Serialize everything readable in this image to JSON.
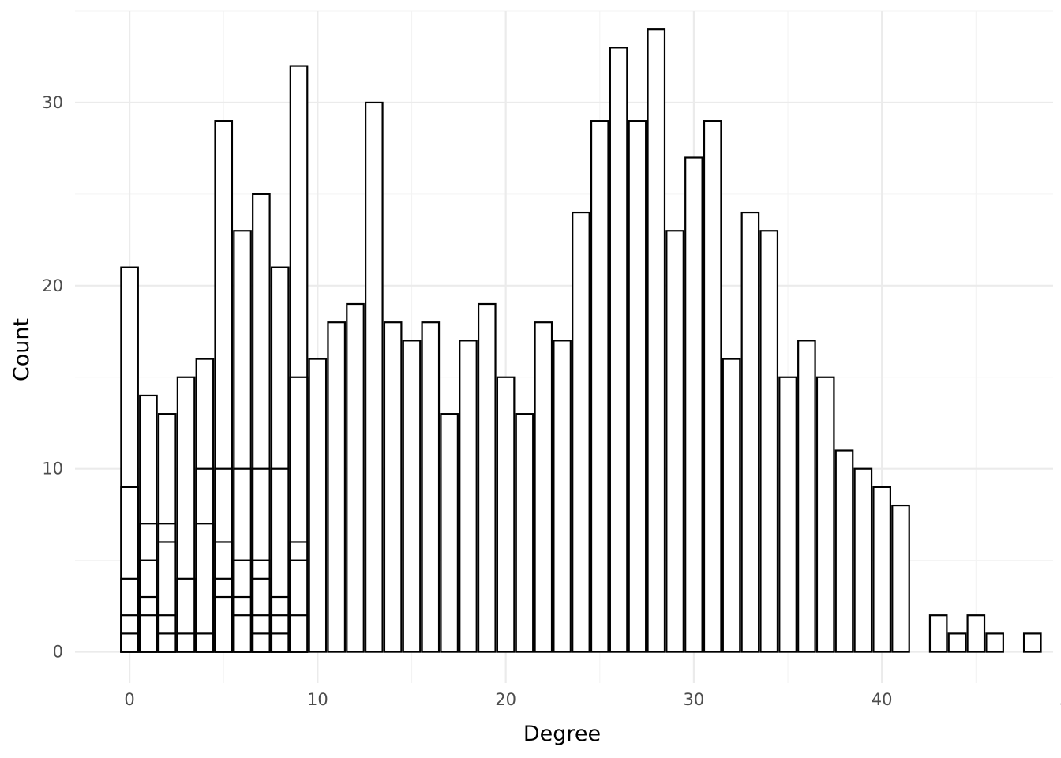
{
  "chart_data": {
    "type": "bar",
    "xlabel": "Degree",
    "ylabel": "Count",
    "xlim": [
      -2.9,
      49.1
    ],
    "ylim": [
      -1.7,
      35
    ],
    "x_ticks": [
      0,
      10,
      20,
      30,
      40,
      50
    ],
    "y_ticks": [
      0,
      10,
      20,
      30
    ],
    "grid": true,
    "legend": "none",
    "bin_width": 0.9,
    "bars": [
      {
        "x": 0,
        "values": [
          1,
          2,
          4,
          9,
          21
        ]
      },
      {
        "x": 1,
        "values": [
          2,
          3,
          5,
          7,
          14
        ]
      },
      {
        "x": 2,
        "values": [
          1,
          2,
          6,
          7,
          13
        ]
      },
      {
        "x": 3,
        "values": [
          1,
          4,
          15
        ]
      },
      {
        "x": 4,
        "values": [
          1,
          7,
          10,
          16
        ]
      },
      {
        "x": 5,
        "values": [
          3,
          4,
          6,
          10,
          29
        ]
      },
      {
        "x": 6,
        "values": [
          2,
          3,
          5,
          10,
          23
        ]
      },
      {
        "x": 7,
        "values": [
          1,
          2,
          4,
          5,
          10,
          25
        ]
      },
      {
        "x": 8,
        "values": [
          1,
          2,
          3,
          10,
          21
        ]
      },
      {
        "x": 9,
        "values": [
          2,
          5,
          6,
          15,
          32
        ]
      },
      {
        "x": 10,
        "values": [
          16
        ]
      },
      {
        "x": 11,
        "values": [
          18
        ]
      },
      {
        "x": 12,
        "values": [
          19
        ]
      },
      {
        "x": 13,
        "values": [
          30
        ]
      },
      {
        "x": 14,
        "values": [
          18
        ]
      },
      {
        "x": 15,
        "values": [
          17
        ]
      },
      {
        "x": 16,
        "values": [
          18
        ]
      },
      {
        "x": 17,
        "values": [
          13
        ]
      },
      {
        "x": 18,
        "values": [
          17
        ]
      },
      {
        "x": 19,
        "values": [
          19
        ]
      },
      {
        "x": 20,
        "values": [
          15
        ]
      },
      {
        "x": 21,
        "values": [
          13
        ]
      },
      {
        "x": 22,
        "values": [
          18
        ]
      },
      {
        "x": 23,
        "values": [
          17
        ]
      },
      {
        "x": 24,
        "values": [
          24
        ]
      },
      {
        "x": 25,
        "values": [
          29
        ]
      },
      {
        "x": 26,
        "values": [
          33
        ]
      },
      {
        "x": 27,
        "values": [
          29
        ]
      },
      {
        "x": 28,
        "values": [
          34
        ]
      },
      {
        "x": 29,
        "values": [
          23
        ]
      },
      {
        "x": 30,
        "values": [
          27
        ]
      },
      {
        "x": 31,
        "values": [
          29
        ]
      },
      {
        "x": 32,
        "values": [
          16
        ]
      },
      {
        "x": 33,
        "values": [
          24
        ]
      },
      {
        "x": 34,
        "values": [
          23
        ]
      },
      {
        "x": 35,
        "values": [
          15
        ]
      },
      {
        "x": 36,
        "values": [
          17
        ]
      },
      {
        "x": 37,
        "values": [
          15
        ]
      },
      {
        "x": 38,
        "values": [
          11
        ]
      },
      {
        "x": 39,
        "values": [
          10
        ]
      },
      {
        "x": 40,
        "values": [
          9
        ]
      },
      {
        "x": 41,
        "values": [
          8
        ]
      },
      {
        "x": 43,
        "values": [
          2
        ]
      },
      {
        "x": 44,
        "values": [
          1
        ]
      },
      {
        "x": 45,
        "values": [
          2
        ]
      },
      {
        "x": 46,
        "values": [
          1
        ]
      },
      {
        "x": 48,
        "values": [
          1
        ]
      }
    ]
  }
}
